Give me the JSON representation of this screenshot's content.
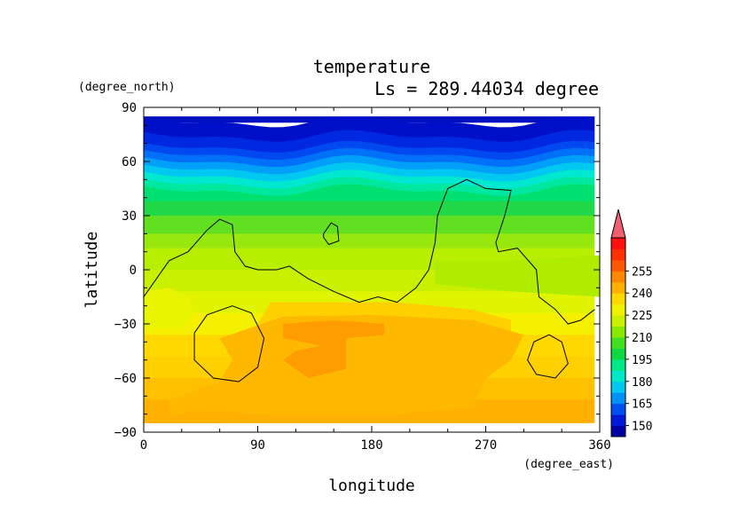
{
  "chart_data": {
    "type": "heatmap",
    "title": "temperature",
    "subtitle": "Ls = 289.44034 degree",
    "xlabel": "longitude",
    "ylabel": "latitude",
    "x_units": "(degree_east)",
    "y_units": "(degree_north)",
    "xlim": [
      0,
      360
    ],
    "ylim": [
      -90,
      90
    ],
    "x_ticks": [
      0,
      90,
      180,
      270,
      360
    ],
    "y_ticks": [
      90,
      60,
      30,
      0,
      -30,
      -60,
      -90
    ],
    "x_tick_labels": [
      "0",
      "90",
      "180",
      "270",
      "360"
    ],
    "y_tick_labels": [
      "90",
      "60",
      "30",
      "0",
      "−30",
      "−60",
      "−90"
    ],
    "colorbar": {
      "levels": [
        150,
        165,
        180,
        195,
        210,
        225,
        240,
        255
      ],
      "labels": [
        "150",
        "165",
        "180",
        "195",
        "210",
        "225",
        "240",
        "255"
      ],
      "colors": [
        "#0000a0",
        "#0018d8",
        "#0050f0",
        "#0090f8",
        "#00c8f0",
        "#00e8c8",
        "#00e888",
        "#10d840",
        "#40e020",
        "#88e800",
        "#c8f000",
        "#f0f000",
        "#ffd800",
        "#ffb000",
        "#ff8800",
        "#ff5800",
        "#ff3000",
        "#ff1010",
        "#f06070"
      ]
    },
    "contour_level": "200"
  }
}
